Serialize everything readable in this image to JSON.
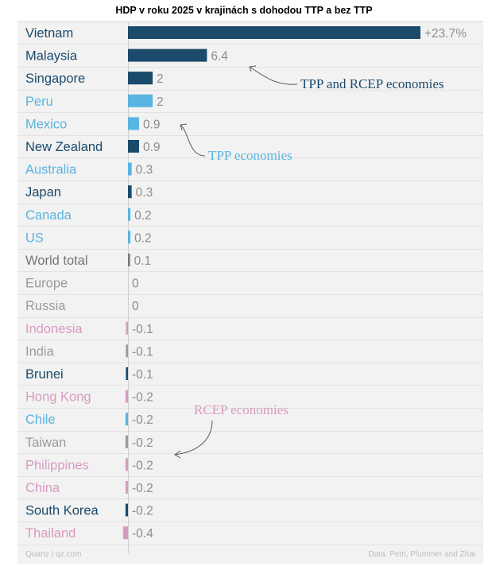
{
  "title": "HDP v roku 2025 v krajinách s dohodou TTP a bez TTP",
  "colors": {
    "tpp_and_rcep": "#1b4a6b",
    "tpp": "#5ab4e0",
    "rcep": "#d79bc1",
    "neither": "#9a9a9a",
    "world": "#777777",
    "value_text": "#8c8c8c"
  },
  "chart_data": {
    "type": "bar",
    "orientation": "horizontal",
    "unit": "%",
    "categories": [
      "Vietnam",
      "Malaysia",
      "Singapore",
      "Peru",
      "Mexico",
      "New Zealand",
      "Australia",
      "Japan",
      "Canada",
      "US",
      "World total",
      "Europe",
      "Russia",
      "Indonesia",
      "India",
      "Brunei",
      "Hong Kong",
      "Chile",
      "Taiwan",
      "Philippines",
      "China",
      "South Korea",
      "Thailand"
    ],
    "values": [
      23.7,
      6.4,
      2,
      2,
      0.9,
      0.9,
      0.3,
      0.3,
      0.2,
      0.2,
      0.1,
      0,
      0,
      -0.1,
      -0.1,
      -0.1,
      -0.2,
      -0.2,
      -0.2,
      -0.2,
      -0.2,
      -0.2,
      -0.4
    ],
    "value_labels": [
      "+23.7%",
      "6.4",
      "2",
      "2",
      "0.9",
      "0.9",
      "0.3",
      "0.3",
      "0.2",
      "0.2",
      "0.1",
      "0",
      "0",
      "-0.1",
      "-0.1",
      "-0.1",
      "-0.2",
      "-0.2",
      "-0.2",
      "-0.2",
      "-0.2",
      "-0.2",
      "-0.4"
    ],
    "groups": [
      "tpp_and_rcep",
      "tpp_and_rcep",
      "tpp_and_rcep",
      "tpp",
      "tpp",
      "tpp_and_rcep",
      "tpp",
      "tpp_and_rcep",
      "tpp",
      "tpp",
      "world",
      "neither",
      "neither",
      "rcep",
      "neither",
      "tpp_and_rcep",
      "rcep",
      "tpp",
      "neither",
      "rcep",
      "rcep",
      "tpp_and_rcep",
      "rcep"
    ],
    "annotations": [
      {
        "text": "TPP and RCEP economies",
        "group": "tpp_and_rcep"
      },
      {
        "text": "TPP economies",
        "group": "tpp"
      },
      {
        "text": "RCEP economies",
        "group": "rcep"
      }
    ]
  },
  "footer": {
    "source_left": "Quartz | qz.com",
    "source_right": "Data: Petri, Plummer and Zhai"
  }
}
